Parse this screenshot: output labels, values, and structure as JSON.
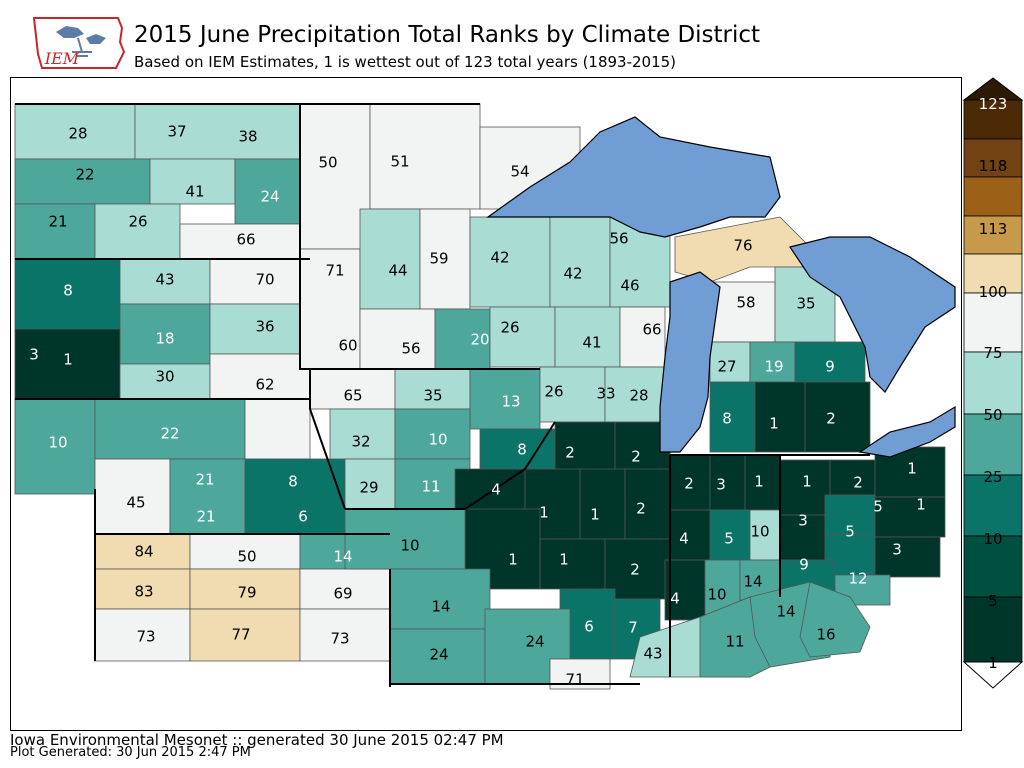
{
  "header": {
    "title": "2015 June Precipitation Total Ranks by Climate District",
    "subtitle": "Based on IEM Estimates, 1 is wettest out of 123 total years (1893-2015)",
    "logo_text": "IEM"
  },
  "footer": {
    "line1": "Iowa Environmental Mesonet :: generated 30 June 2015 02:47 PM",
    "line2": "Plot Generated: 30 Jun 2015 2:47 PM"
  },
  "colors": {
    "bins": [
      "#00362a",
      "#00503f",
      "#0b7468",
      "#4da89b",
      "#a9ddd4",
      "#f2f4f4",
      "#f0dcb0",
      "#c79a4b",
      "#9c6018",
      "#714213",
      "#4b2a05"
    ],
    "lake": "#6f9dd4",
    "background": "#ffffff"
  },
  "colorbar": {
    "ticks": [
      "1",
      "5",
      "10",
      "25",
      "50",
      "75",
      "100",
      "113",
      "118",
      "123"
    ]
  },
  "map": {
    "labels": [
      "28",
      "37",
      "38",
      "22",
      "41",
      "24",
      "21",
      "26",
      "66",
      "8",
      "43",
      "70",
      "18",
      "36",
      "3",
      "1",
      "30",
      "62",
      "10",
      "22",
      "21",
      "8",
      "45",
      "21",
      "6",
      "84",
      "50",
      "14",
      "83",
      "79",
      "69",
      "73",
      "77",
      "73",
      "50",
      "51",
      "54",
      "71",
      "44",
      "59",
      "60",
      "56",
      "20",
      "65",
      "35",
      "13",
      "32",
      "10",
      "29",
      "11",
      "8",
      "4",
      "42",
      "42",
      "46",
      "56",
      "26",
      "41",
      "66",
      "26",
      "33",
      "28",
      "76",
      "58",
      "35",
      "27",
      "19",
      "9",
      "8",
      "1",
      "2",
      "2",
      "2",
      "1",
      "1",
      "2",
      "1",
      "1",
      "2",
      "10",
      "14",
      "24",
      "24",
      "6",
      "7",
      "43",
      "71",
      "2",
      "3",
      "1",
      "4",
      "5",
      "10",
      "4",
      "10",
      "14",
      "11",
      "14",
      "16",
      "1",
      "2",
      "1",
      "3",
      "5",
      "1",
      "5",
      "9",
      "3",
      "12"
    ]
  }
}
